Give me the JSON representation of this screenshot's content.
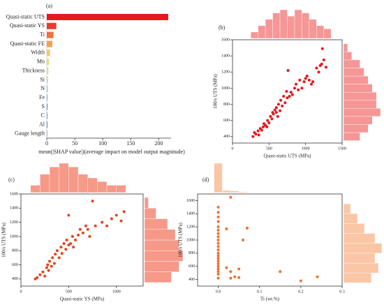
{
  "chart_data": [
    {
      "type": "bar",
      "orientation": "horizontal",
      "panel": "(a)",
      "categories": [
        "Quasi-static UTS",
        "Quasi-static YS",
        "Ti",
        "Quasi-static FE",
        "Width",
        "Mn",
        "Thickness",
        "Si",
        "N",
        "Fe",
        "S",
        "C",
        "Al",
        "Gauge length"
      ],
      "values": [
        217,
        17,
        12,
        10,
        6,
        4,
        3,
        2,
        2,
        1.5,
        1.5,
        1,
        1,
        0.5
      ],
      "colors": [
        "#e41a1c",
        "#ee3a2a",
        "#f07040",
        "#f5a050",
        "#f4cc60",
        "#e0e070",
        "#c8e8a0",
        "#a8e0c0",
        "#90d8e0",
        "#70c0e0",
        "#5aa0d8",
        "#4a80d0",
        "#3a60c8",
        "#3040b0"
      ],
      "xlim": [
        0,
        222
      ],
      "xticks": [
        0,
        50,
        100,
        150,
        200
      ],
      "xlabel": "mean(|SHAP value|)(average impact on model output magnitude)"
    },
    {
      "type": "scatter",
      "panel": "(b)",
      "xlabel": "Quasi-static UTS (MPa)",
      "ylabel": "100/s UTS (MPa)",
      "point_color": "#e8141c",
      "hist_color": "#f47c7c",
      "xlim": [
        0,
        1500
      ],
      "xticks": [
        0,
        500,
        1000,
        1500
      ],
      "ylim": [
        320,
        1600
      ],
      "yticks": [
        400,
        600,
        800,
        1000,
        1200,
        1400,
        1600
      ],
      "x": [
        280,
        300,
        320,
        350,
        360,
        380,
        400,
        420,
        430,
        450,
        470,
        480,
        500,
        520,
        540,
        550,
        560,
        580,
        600,
        600,
        620,
        630,
        650,
        660,
        680,
        700,
        720,
        740,
        750,
        760,
        780,
        800,
        820,
        850,
        870,
        900,
        920,
        950,
        980,
        1000,
        1020,
        1050,
        1080,
        1100,
        1150,
        1180,
        1200,
        1220,
        1230,
        1250,
        1280
      ],
      "y": [
        400,
        450,
        430,
        470,
        420,
        500,
        480,
        520,
        560,
        540,
        520,
        600,
        570,
        650,
        620,
        700,
        680,
        730,
        700,
        760,
        650,
        800,
        720,
        850,
        780,
        900,
        820,
        960,
        880,
        1220,
        900,
        950,
        920,
        1000,
        1050,
        980,
        1100,
        1000,
        1080,
        1120,
        1150,
        1100,
        1050,
        1080,
        1250,
        1200,
        1280,
        1300,
        1490,
        1350,
        1260
      ],
      "x_hist": {
        "bins": [
          250,
          350,
          450,
          550,
          650,
          750,
          850,
          950,
          1050,
          1150,
          1250,
          1350
        ],
        "counts": [
          2,
          4,
          6,
          8,
          9,
          7,
          9,
          8,
          6,
          4,
          3
        ]
      },
      "y_hist": {
        "bins": [
          350,
          450,
          550,
          650,
          750,
          850,
          950,
          1050,
          1150,
          1250,
          1350,
          1450,
          1550
        ],
        "counts": [
          4,
          6,
          7,
          9,
          8,
          8,
          7,
          6,
          5,
          4,
          2,
          1
        ]
      }
    },
    {
      "type": "scatter",
      "panel": "(c)",
      "xlabel": "Quasi-static YS (MPa)",
      "ylabel": "100/s UTS (MPa)",
      "point_color": "#e8401c",
      "hist_color": "#f4806c",
      "xlim": [
        0,
        1280
      ],
      "xticks": [
        0,
        500,
        1000
      ],
      "ylim": [
        300,
        1600
      ],
      "yticks": [
        400,
        600,
        800,
        1000,
        1200,
        1400,
        1600
      ],
      "x": [
        150,
        170,
        200,
        230,
        250,
        270,
        280,
        290,
        300,
        320,
        330,
        350,
        360,
        380,
        400,
        420,
        430,
        450,
        470,
        480,
        500,
        500,
        520,
        540,
        550,
        570,
        600,
        620,
        650,
        680,
        700,
        720,
        750,
        780,
        850,
        900,
        950,
        1000,
        1050,
        1080
      ],
      "y": [
        400,
        420,
        460,
        500,
        440,
        560,
        600,
        520,
        650,
        580,
        700,
        620,
        750,
        800,
        700,
        850,
        760,
        900,
        820,
        950,
        880,
        1300,
        900,
        1000,
        850,
        950,
        1020,
        1100,
        1050,
        1150,
        1100,
        1000,
        1500,
        1150,
        1200,
        1150,
        1250,
        1300,
        1220,
        1350
      ],
      "x_hist": {
        "bins": [
          100,
          200,
          300,
          400,
          500,
          600,
          700,
          800,
          900,
          1000,
          1100
        ],
        "counts": [
          2,
          5,
          7,
          8,
          7,
          5,
          4,
          3,
          2,
          2
        ]
      },
      "y_hist": {
        "bins": [
          350,
          500,
          650,
          800,
          950,
          1100,
          1250,
          1400,
          1550
        ],
        "counts": [
          7,
          9,
          10,
          9,
          8,
          6,
          3,
          1
        ]
      }
    },
    {
      "type": "scatter",
      "panel": "(d)",
      "xlabel": "Ti (wt.%)",
      "ylabel": "100/s UTS (MPa)",
      "point_color": "#f07030",
      "hist_color": "#f9b890",
      "xlim": [
        -0.05,
        0.3
      ],
      "xticks": [
        {
          "value": 0,
          "label": "0.0"
        },
        0.1,
        0.2,
        0.3
      ],
      "ylim": [
        300,
        1700
      ],
      "yticks": [
        400,
        600,
        800,
        1000,
        1200,
        1400,
        1600
      ],
      "x": [
        0,
        0,
        0,
        0,
        0,
        0,
        0,
        0,
        0,
        0,
        0,
        0,
        0,
        0,
        0,
        0,
        0,
        0,
        0,
        0,
        0,
        0,
        0.02,
        0.03,
        0.03,
        0.04,
        0.05,
        0.05,
        0.06,
        0.07,
        0.15,
        0.2,
        0.24,
        0.02,
        0.03
      ],
      "y": [
        420,
        480,
        520,
        560,
        600,
        640,
        680,
        720,
        760,
        800,
        850,
        900,
        950,
        1000,
        1050,
        1100,
        1150,
        1200,
        1280,
        1350,
        1420,
        1500,
        1170,
        1650,
        520,
        440,
        560,
        430,
        1000,
        1180,
        520,
        380,
        440,
        580,
        420
      ],
      "x_hist": {
        "bins": [
          -0.01,
          0.01,
          0.03,
          0.05,
          0.07
        ],
        "counts": [
          70,
          5,
          4,
          2
        ]
      },
      "y_hist": {
        "bins": [
          350,
          500,
          650,
          800,
          950,
          1100,
          1250,
          1400,
          1550
        ],
        "counts": [
          8,
          10,
          9,
          11,
          9,
          6,
          4,
          2
        ]
      }
    }
  ]
}
